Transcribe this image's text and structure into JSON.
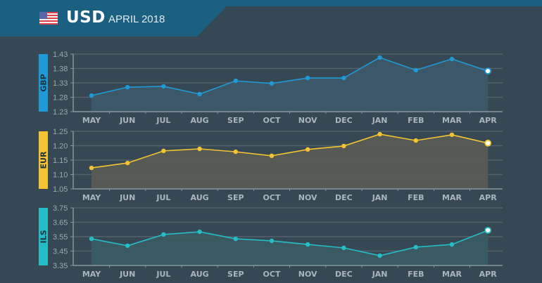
{
  "header": {
    "flag_icon": "us-flag-icon",
    "currency": "USD",
    "date": "APRIL 2018"
  },
  "colors": {
    "background": "#364853",
    "header": "#1b6080",
    "grid": "#52626c",
    "axis": "#8796a0"
  },
  "chart_data": [
    {
      "type": "area",
      "title": "GBP",
      "color": "#1f9ad6",
      "fill": "#3d5a6a",
      "categories": [
        "MAY",
        "JUN",
        "JUL",
        "AUG",
        "SEP",
        "OCT",
        "NOV",
        "DEC",
        "JAN",
        "FEB",
        "MAR",
        "APR"
      ],
      "values": [
        1.286,
        1.315,
        1.318,
        1.291,
        1.337,
        1.328,
        1.347,
        1.347,
        1.418,
        1.374,
        1.413,
        1.371
      ],
      "yticks": [
        "1.43",
        "1.38",
        "1.33",
        "1.28",
        "1.23"
      ],
      "ylim": [
        1.23,
        1.43
      ],
      "grid": true,
      "highlight_last": true
    },
    {
      "type": "area",
      "title": "EUR",
      "color": "#f5c432",
      "fill": "#5a5b54",
      "categories": [
        "MAY",
        "JUN",
        "JUL",
        "AUG",
        "SEP",
        "OCT",
        "NOV",
        "DEC",
        "JAN",
        "FEB",
        "MAR",
        "APR"
      ],
      "values": [
        1.123,
        1.14,
        1.182,
        1.189,
        1.179,
        1.165,
        1.187,
        1.199,
        1.24,
        1.218,
        1.238,
        1.209
      ],
      "yticks": [
        "1.25",
        "1.20",
        "1.15",
        "1.10",
        "1.05"
      ],
      "ylim": [
        1.05,
        1.25
      ],
      "grid": true,
      "highlight_last": true
    },
    {
      "type": "area",
      "title": "ILS",
      "color": "#25bdc6",
      "fill": "#3b5c63",
      "categories": [
        "MAY",
        "JUN",
        "JUL",
        "AUG",
        "SEP",
        "OCT",
        "NOV",
        "DEC",
        "JAN",
        "FEB",
        "MAR",
        "APR"
      ],
      "values": [
        3.535,
        3.487,
        3.565,
        3.584,
        3.535,
        3.521,
        3.496,
        3.472,
        3.418,
        3.477,
        3.496,
        3.594
      ],
      "yticks": [
        "3.75",
        "3.65",
        "3.55",
        "3.45",
        "3.35"
      ],
      "ylim": [
        3.35,
        3.75
      ],
      "grid": true,
      "highlight_last": true
    }
  ]
}
